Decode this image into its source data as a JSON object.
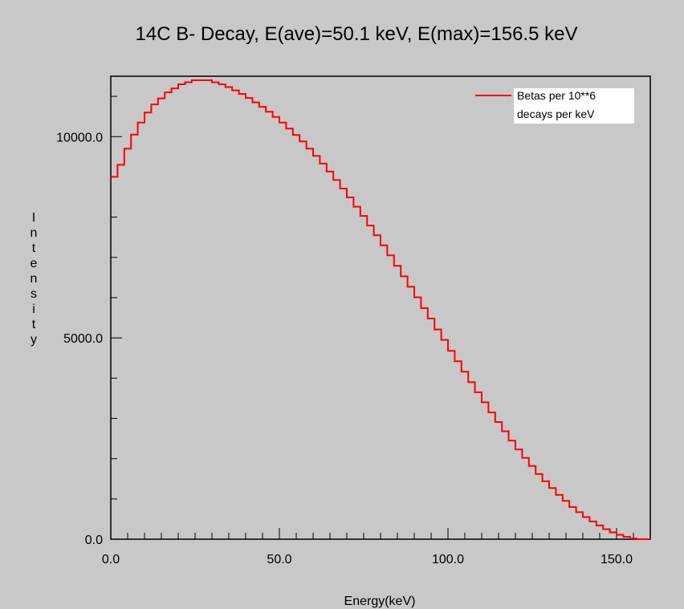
{
  "chart_data": {
    "type": "line",
    "title": "14C B- Decay, E(ave)=50.1 keV, E(max)=156.5 keV",
    "xlabel": "Energy(keV)",
    "ylabel": "Intensity",
    "xlim": [
      0,
      160
    ],
    "ylim": [
      0,
      11500
    ],
    "x_ticks": [
      0,
      50,
      100,
      150
    ],
    "x_tick_labels": [
      "0.0",
      "50.0",
      "100.0",
      "150.0"
    ],
    "y_ticks": [
      0,
      5000,
      10000
    ],
    "y_tick_labels": [
      "0.0",
      "5000.0",
      "10000.0"
    ],
    "grid": false,
    "legend_position": "top-right",
    "colors": {
      "series": "#ff0000",
      "background": "#c8c8c8",
      "axis": "#000000",
      "legend_bg": "#ffffff"
    },
    "series": [
      {
        "name": "Betas per 10**6 decays per keV",
        "step": true,
        "x": [
          0,
          2,
          4,
          6,
          8,
          10,
          12,
          14,
          16,
          18,
          20,
          22,
          24,
          26,
          28,
          30,
          32,
          34,
          36,
          38,
          40,
          42,
          44,
          46,
          48,
          50,
          52,
          54,
          56,
          58,
          60,
          62,
          64,
          66,
          68,
          70,
          72,
          74,
          76,
          78,
          80,
          82,
          84,
          86,
          88,
          90,
          92,
          94,
          96,
          98,
          100,
          102,
          104,
          106,
          108,
          110,
          112,
          114,
          116,
          118,
          120,
          122,
          124,
          126,
          128,
          130,
          132,
          134,
          136,
          138,
          140,
          142,
          144,
          146,
          148,
          150,
          152,
          154,
          156,
          158
        ],
        "y": [
          9000,
          9300,
          9700,
          10050,
          10350,
          10600,
          10800,
          10950,
          11100,
          11200,
          11300,
          11350,
          11400,
          11400,
          11400,
          11350,
          11300,
          11230,
          11150,
          11060,
          10960,
          10850,
          10740,
          10620,
          10490,
          10350,
          10200,
          10040,
          9880,
          9700,
          9520,
          9330,
          9130,
          8920,
          8710,
          8490,
          8260,
          8030,
          7790,
          7550,
          7300,
          7050,
          6790,
          6530,
          6270,
          6010,
          5740,
          5480,
          5210,
          4950,
          4680,
          4420,
          4160,
          3900,
          3650,
          3400,
          3150,
          2910,
          2680,
          2450,
          2230,
          2020,
          1820,
          1620,
          1440,
          1270,
          1100,
          950,
          800,
          670,
          550,
          440,
          340,
          250,
          170,
          110,
          60,
          20,
          0,
          0
        ]
      }
    ]
  }
}
